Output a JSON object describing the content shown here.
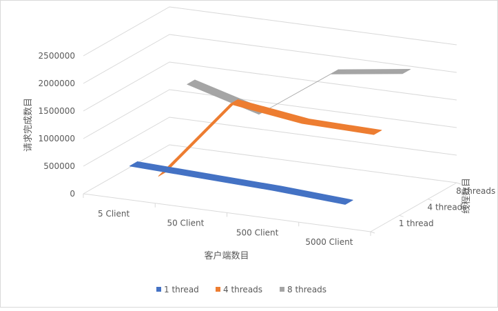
{
  "chart_data": {
    "type": "line-3d",
    "title": "",
    "ylabel": "请求完成数目",
    "xlabel": "客户端数目",
    "zlabel": "线程数目",
    "categories": [
      "5 Client",
      "50 Client",
      "500 Client",
      "5000 Client"
    ],
    "depth_categories": [
      "1 thread",
      "4 threads",
      "8 threads"
    ],
    "y_ticks": [
      "0",
      "500000",
      "1000000",
      "1500000",
      "2000000",
      "2500000"
    ],
    "ylim": [
      0,
      2500000
    ],
    "legend_position": "bottom",
    "series": [
      {
        "name": "1 thread",
        "color": "#4472C4",
        "values": [
          480000,
          430000,
          380000,
          300000
        ]
      },
      {
        "name": "4 threads",
        "color": "#ED7D31",
        "values": [
          0,
          1480000,
          1300000,
          1270000
        ]
      },
      {
        "name": "8 threads",
        "color": "#A5A5A5",
        "values": [
          1370000,
          1000000,
          1900000,
          2080000
        ]
      }
    ]
  }
}
